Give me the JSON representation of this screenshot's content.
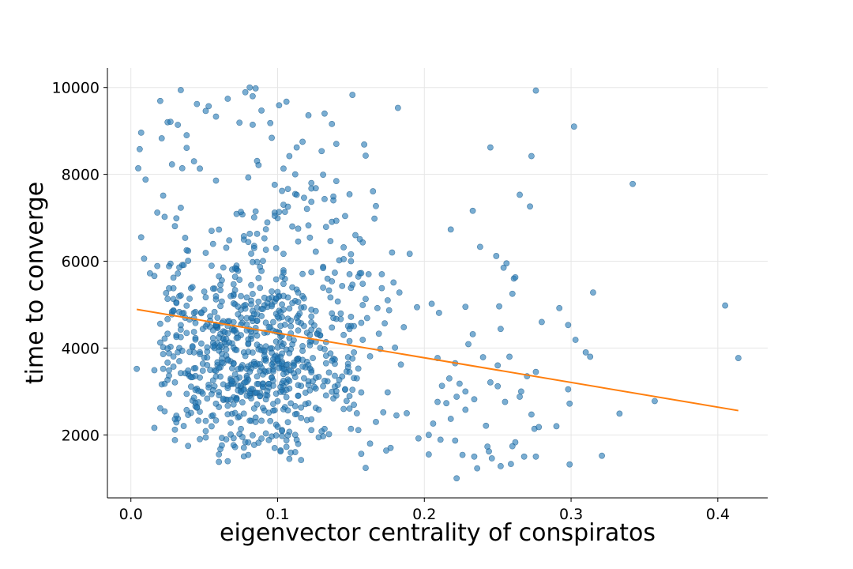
{
  "chart_data": {
    "type": "scatter",
    "title": "",
    "xlabel": "eigenvector centrality of conspiratos",
    "ylabel": "time to converge",
    "xlim": [
      -0.016,
      0.434
    ],
    "ylim": [
      550,
      10450
    ],
    "x_ticks": [
      0.0,
      0.1,
      0.2,
      0.3,
      0.4
    ],
    "x_tick_labels": [
      "0.0",
      "0.1",
      "0.2",
      "0.3",
      "0.4"
    ],
    "y_ticks": [
      2000,
      4000,
      6000,
      8000,
      10000
    ],
    "y_tick_labels": [
      "2000",
      "4000",
      "6000",
      "8000",
      "10000"
    ],
    "grid": true,
    "point_color": "#1f77b4",
    "line_color": "#ff7f0e",
    "point_generation": {
      "seed": 7,
      "count": 1000
    },
    "series": [
      {
        "kind": "scatter",
        "points": [
          [
            0.004,
            3520
          ],
          [
            0.005,
            8140
          ],
          [
            0.006,
            8580
          ],
          [
            0.007,
            8960
          ],
          [
            0.007,
            6550
          ],
          [
            0.009,
            6060
          ],
          [
            0.01,
            7880
          ],
          [
            0.013,
            5720
          ],
          [
            0.016,
            5660
          ],
          [
            0.018,
            7120
          ],
          [
            0.02,
            9690
          ],
          [
            0.021,
            8830
          ],
          [
            0.022,
            7510
          ],
          [
            0.025,
            9200
          ],
          [
            0.027,
            9210
          ],
          [
            0.028,
            8230
          ],
          [
            0.032,
            9140
          ],
          [
            0.034,
            9940
          ],
          [
            0.038,
            8610
          ],
          [
            0.043,
            8300
          ],
          [
            0.045,
            9620
          ],
          [
            0.051,
            9460
          ],
          [
            0.053,
            9570
          ],
          [
            0.058,
            9330
          ],
          [
            0.066,
            9740
          ],
          [
            0.074,
            9190
          ],
          [
            0.078,
            9890
          ],
          [
            0.081,
            10000
          ],
          [
            0.083,
            9800
          ],
          [
            0.085,
            9980
          ],
          [
            0.089,
            9470
          ],
          [
            0.095,
            9180
          ],
          [
            0.101,
            9590
          ],
          [
            0.113,
            8620
          ],
          [
            0.121,
            9360
          ],
          [
            0.132,
            9400
          ],
          [
            0.137,
            9160
          ],
          [
            0.151,
            9830
          ],
          [
            0.16,
            8430
          ],
          [
            0.182,
            9530
          ],
          [
            0.112,
            8000
          ],
          [
            0.108,
            8420
          ],
          [
            0.117,
            8750
          ],
          [
            0.123,
            7800
          ],
          [
            0.131,
            7990
          ],
          [
            0.14,
            8700
          ],
          [
            0.118,
            7460
          ],
          [
            0.098,
            7120
          ],
          [
            0.1,
            6990
          ],
          [
            0.104,
            7300
          ],
          [
            0.11,
            6800
          ],
          [
            0.114,
            6750
          ],
          [
            0.126,
            6220
          ],
          [
            0.131,
            5870
          ],
          [
            0.142,
            6020
          ],
          [
            0.145,
            6320
          ],
          [
            0.15,
            6000
          ],
          [
            0.153,
            6600
          ],
          [
            0.149,
            7540
          ],
          [
            0.146,
            7040
          ],
          [
            0.165,
            7610
          ],
          [
            0.166,
            6980
          ],
          [
            0.167,
            7270
          ],
          [
            0.171,
            5700
          ],
          [
            0.175,
            5100
          ],
          [
            0.178,
            6200
          ],
          [
            0.19,
            6170
          ],
          [
            0.183,
            5280
          ],
          [
            0.179,
            5510
          ],
          [
            0.186,
            4480
          ],
          [
            0.195,
            4940
          ],
          [
            0.205,
            5020
          ],
          [
            0.21,
            4810
          ],
          [
            0.218,
            6730
          ],
          [
            0.233,
            7160
          ],
          [
            0.238,
            6330
          ],
          [
            0.245,
            8620
          ],
          [
            0.249,
            6120
          ],
          [
            0.254,
            5850
          ],
          [
            0.256,
            5950
          ],
          [
            0.261,
            5600
          ],
          [
            0.265,
            7530
          ],
          [
            0.272,
            7260
          ],
          [
            0.273,
            8420
          ],
          [
            0.276,
            9930
          ],
          [
            0.302,
            9100
          ],
          [
            0.342,
            7780
          ],
          [
            0.26,
            5250
          ],
          [
            0.262,
            5630
          ],
          [
            0.292,
            4920
          ],
          [
            0.298,
            4530
          ],
          [
            0.303,
            4190
          ],
          [
            0.315,
            5280
          ],
          [
            0.31,
            3900
          ],
          [
            0.313,
            3800
          ],
          [
            0.405,
            4980
          ],
          [
            0.414,
            3770
          ],
          [
            0.28,
            4600
          ],
          [
            0.276,
            3450
          ],
          [
            0.27,
            3350
          ],
          [
            0.251,
            4960
          ],
          [
            0.252,
            4440
          ],
          [
            0.228,
            4950
          ],
          [
            0.233,
            4320
          ],
          [
            0.23,
            4090
          ],
          [
            0.24,
            3790
          ],
          [
            0.258,
            3800
          ],
          [
            0.25,
            3600
          ],
          [
            0.221,
            3650
          ],
          [
            0.217,
            3300
          ],
          [
            0.212,
            3130
          ],
          [
            0.209,
            3770
          ],
          [
            0.224,
            3180
          ],
          [
            0.228,
            3000
          ],
          [
            0.234,
            2820
          ],
          [
            0.222,
            2880
          ],
          [
            0.215,
            2730
          ],
          [
            0.209,
            2760
          ],
          [
            0.206,
            2260
          ],
          [
            0.203,
            2000
          ],
          [
            0.196,
            1920
          ],
          [
            0.203,
            1550
          ],
          [
            0.211,
            1890
          ],
          [
            0.221,
            1870
          ],
          [
            0.226,
            1540
          ],
          [
            0.222,
            1000
          ],
          [
            0.234,
            1500
          ],
          [
            0.236,
            1230
          ],
          [
            0.243,
            1730
          ],
          [
            0.246,
            1460
          ],
          [
            0.244,
            1620
          ],
          [
            0.252,
            1280
          ],
          [
            0.259,
            1330
          ],
          [
            0.262,
            1830
          ],
          [
            0.26,
            1740
          ],
          [
            0.268,
            1500
          ],
          [
            0.276,
            1500
          ],
          [
            0.275,
            2140
          ],
          [
            0.278,
            2180
          ],
          [
            0.273,
            2470
          ],
          [
            0.265,
            2880
          ],
          [
            0.266,
            3000
          ],
          [
            0.29,
            2200
          ],
          [
            0.298,
            3050
          ],
          [
            0.299,
            2720
          ],
          [
            0.299,
            1320
          ],
          [
            0.321,
            1520
          ],
          [
            0.333,
            2490
          ],
          [
            0.357,
            2780
          ],
          [
            0.245,
            3210
          ],
          [
            0.25,
            3120
          ],
          [
            0.255,
            2760
          ],
          [
            0.242,
            2210
          ],
          [
            0.228,
            2580
          ],
          [
            0.218,
            2370
          ],
          [
            0.188,
            2500
          ],
          [
            0.181,
            2450
          ],
          [
            0.177,
            1700
          ],
          [
            0.174,
            1640
          ],
          [
            0.163,
            1800
          ],
          [
            0.16,
            1240
          ],
          [
            0.155,
            2110
          ],
          [
            0.167,
            2300
          ],
          [
            0.175,
            2980
          ],
          [
            0.172,
            2520
          ],
          [
            0.184,
            3620
          ],
          [
            0.17,
            3980
          ],
          [
            0.163,
            3810
          ],
          [
            0.169,
            4330
          ],
          [
            0.173,
            4570
          ],
          [
            0.18,
            4010
          ],
          [
            0.176,
            4870
          ],
          [
            0.168,
            4920
          ],
          [
            0.161,
            4690
          ],
          [
            0.158,
            4990
          ],
          [
            0.171,
            5380
          ],
          [
            0.162,
            5700
          ],
          [
            0.158,
            5480
          ],
          [
            0.16,
            5130
          ],
          [
            0.157,
            4580
          ]
        ]
      },
      {
        "kind": "line",
        "name": "",
        "x": [
          0.004,
          0.414
        ],
        "y": [
          4890,
          2560
        ]
      }
    ]
  }
}
